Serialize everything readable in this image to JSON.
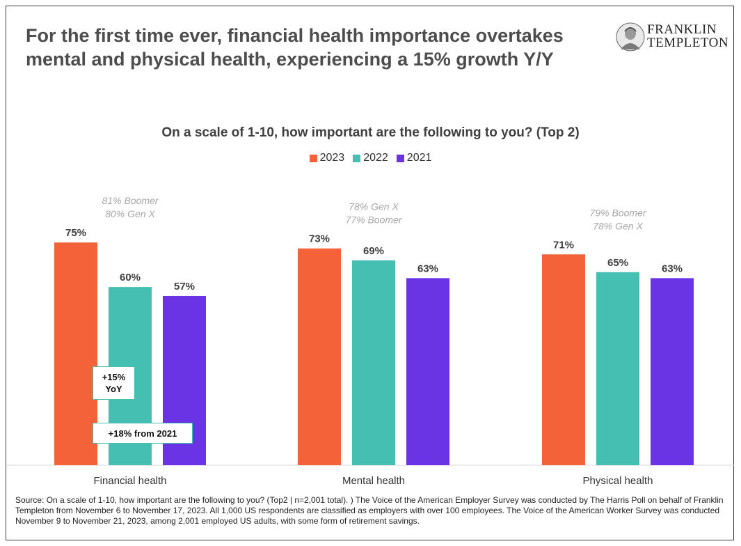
{
  "headline": {
    "line1": "For the first time ever, financial health importance overtakes",
    "line2": "mental and physical health, experiencing a 15% growth Y/Y"
  },
  "logo": {
    "line1": "FRANKLIN",
    "line2": "TEMPLETON"
  },
  "chart_data": {
    "type": "bar",
    "title": "On a scale of 1-10, how important are the following to you? (Top 2)",
    "categories": [
      "Financial health",
      "Mental health",
      "Physical health"
    ],
    "series": [
      {
        "name": "2023",
        "values": [
          75,
          73,
          71
        ],
        "color": "#f4623a"
      },
      {
        "name": "2022",
        "values": [
          60,
          69,
          65
        ],
        "color": "#45bfb2"
      },
      {
        "name": "2021",
        "values": [
          57,
          63,
          63
        ],
        "color": "#6a33e4"
      }
    ],
    "value_suffix": "%",
    "ylim": [
      0,
      100
    ],
    "grid": false,
    "legend_position": "top-center",
    "group_annotations": [
      [
        "81% Boomer",
        "80% Gen X"
      ],
      [
        "78% Gen X",
        "77% Boomer"
      ],
      [
        "79% Boomer",
        "78% Gen X"
      ]
    ],
    "callouts": {
      "yoy_line1": "+15%",
      "yoy_line2": "YoY",
      "from_2021": "+18% from 2021"
    }
  },
  "source": "Source: On a scale of 1-10, how important are the following to you? (Top2 | n=2,001 total). )  The Voice of the American Employer Survey was conducted by The Harris Poll on behalf of Franklin Templeton from November 6 to November 17, 2023. All 1,000 US respondents are classified as employers with over 100 employees. The Voice of the American Worker Survey was conducted November 9 to November 21, 2023, among 2,001 employed US adults, with some form of retirement savings."
}
